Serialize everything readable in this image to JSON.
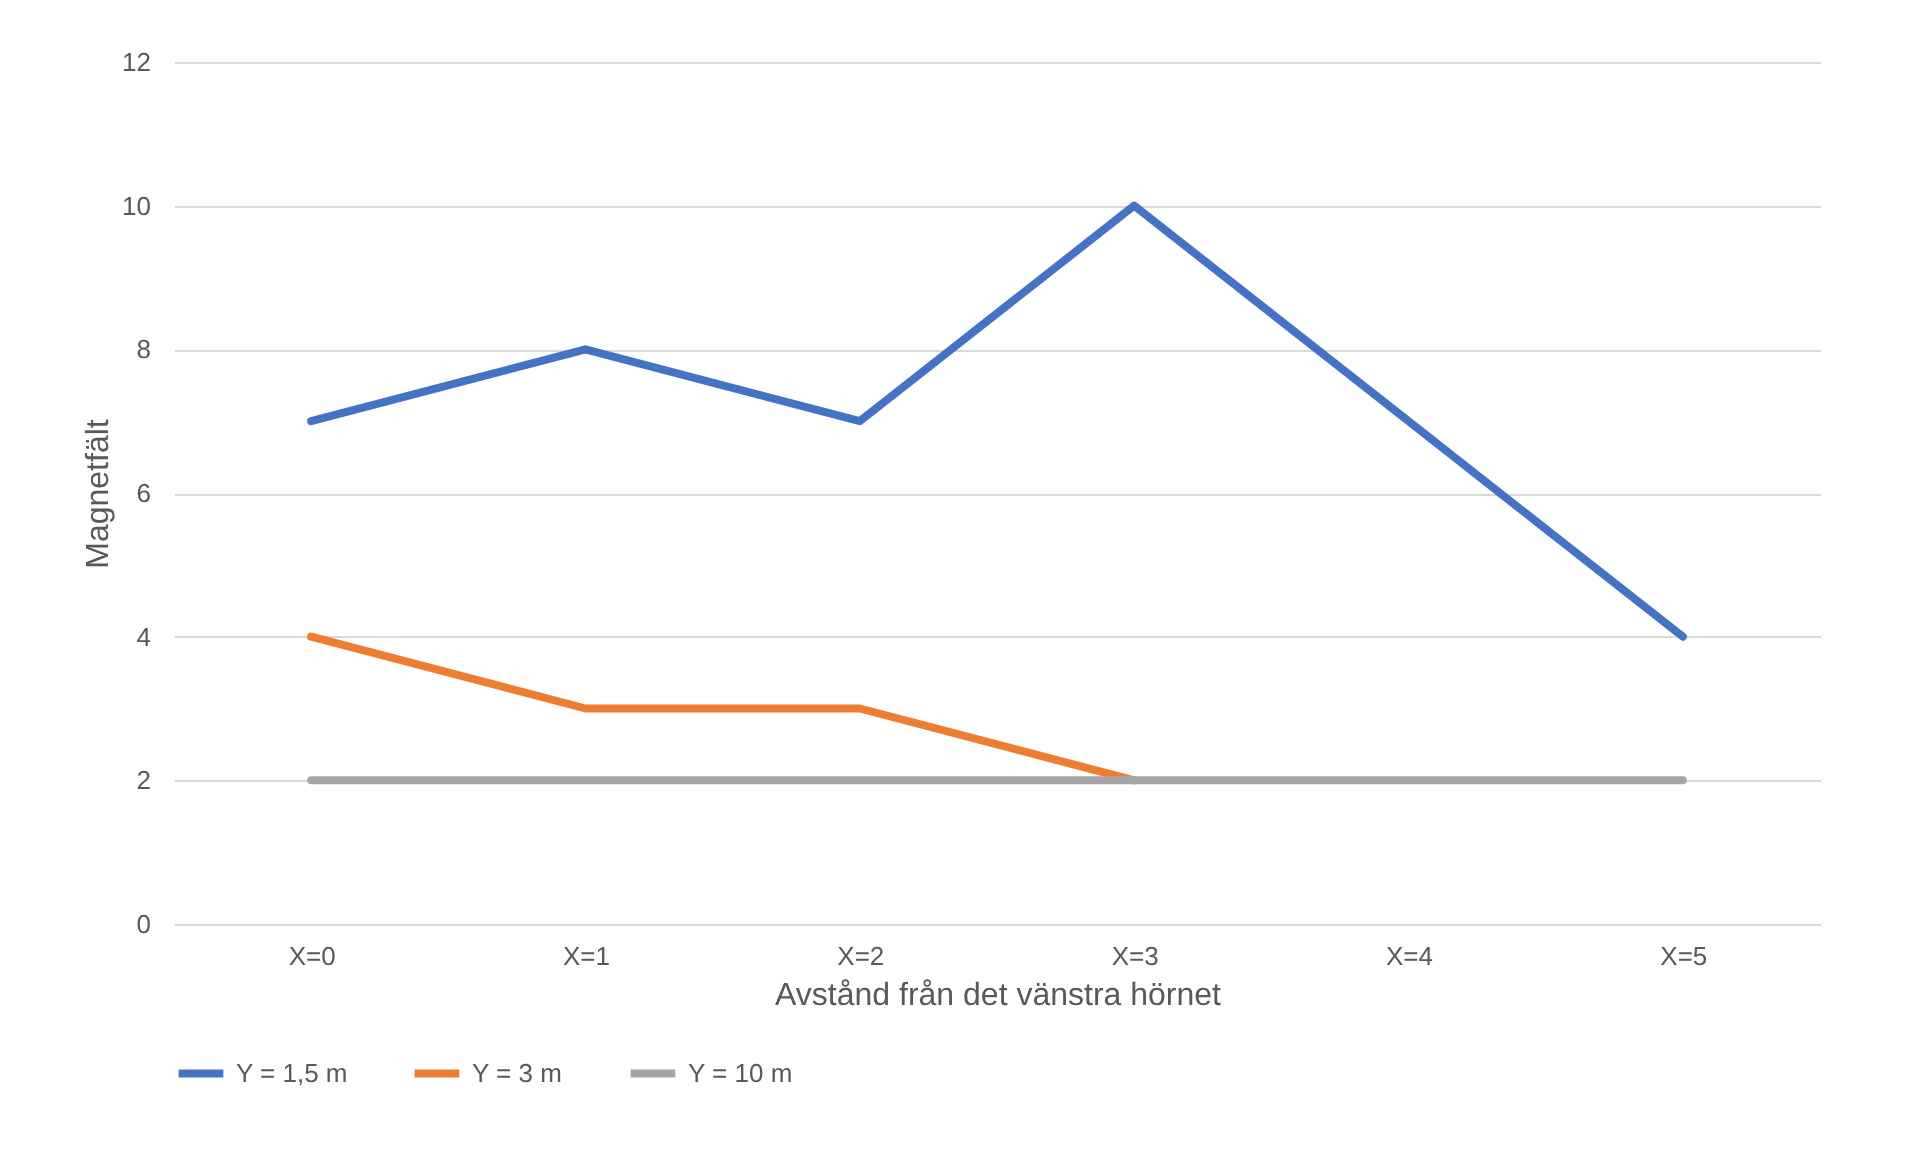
{
  "chart_data": {
    "type": "line",
    "xlabel": "Avstånd från det vänstra hörnet",
    "ylabel": "Magnetfält",
    "categories": [
      "X=0",
      "X=1",
      "X=2",
      "X=3",
      "X=4",
      "X=5"
    ],
    "series": [
      {
        "name": "Y = 1,5 m",
        "color": "#4472c4",
        "values": [
          7,
          8,
          7,
          10,
          7,
          4
        ]
      },
      {
        "name": "Y = 3 m",
        "color": "#ed7d31",
        "values": [
          4,
          3,
          3,
          2,
          null,
          null
        ]
      },
      {
        "name": "Y = 10 m",
        "color": "#a5a5a5",
        "values": [
          2,
          2,
          2,
          2,
          2,
          2
        ]
      }
    ],
    "ylim": [
      0,
      12
    ],
    "yticks": [
      0,
      2,
      4,
      6,
      8,
      10,
      12
    ],
    "grid": "y",
    "legend": "bottom",
    "line_style": "solid"
  }
}
